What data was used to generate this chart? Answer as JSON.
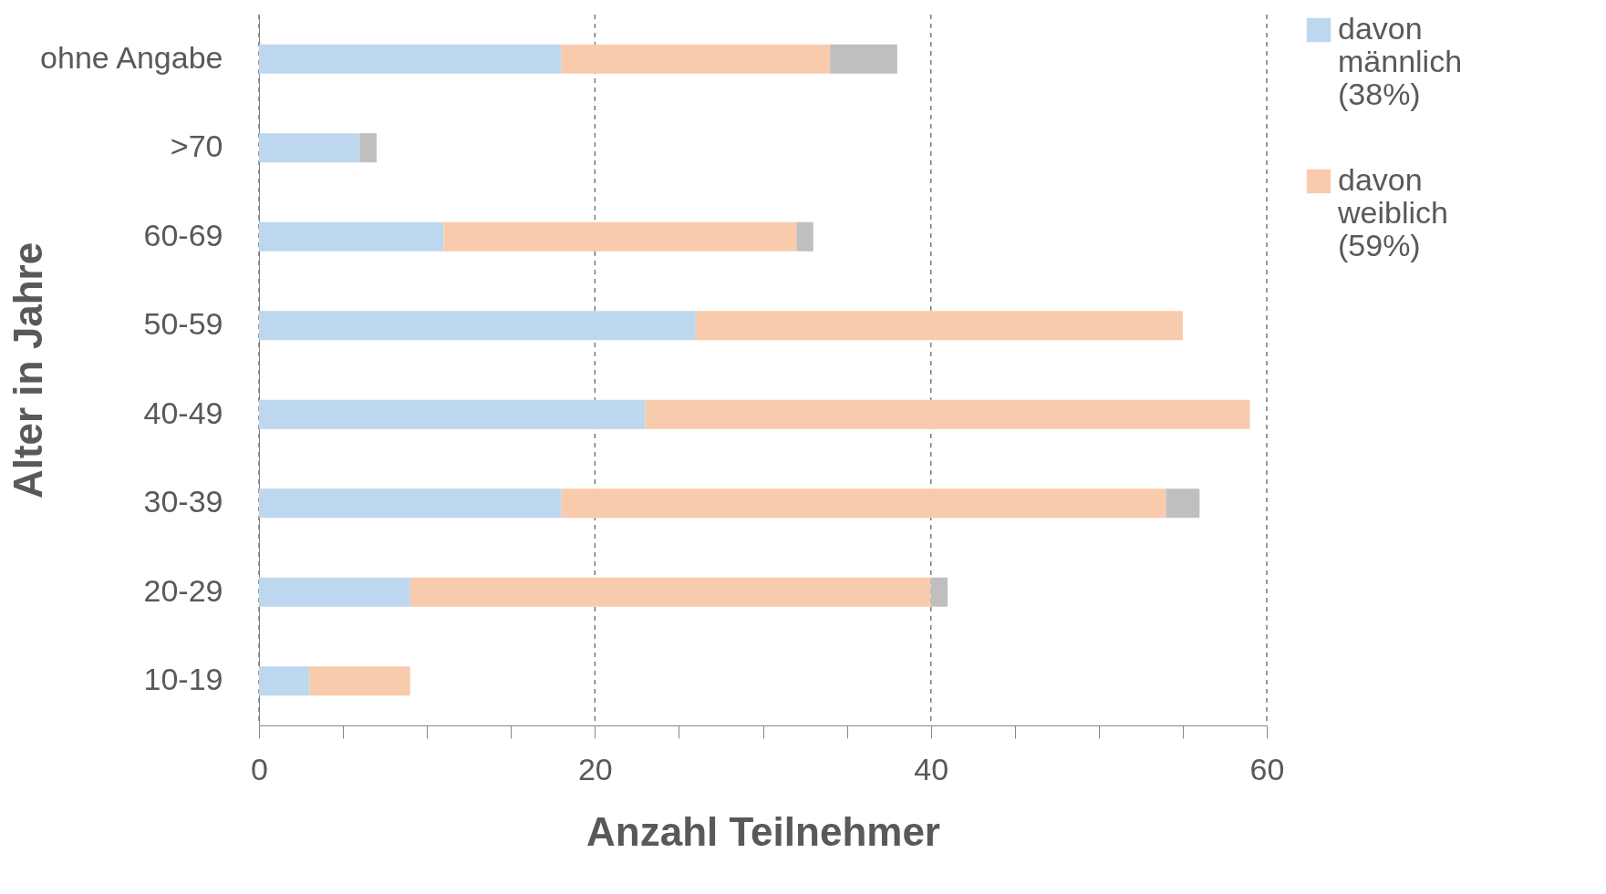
{
  "chart_data": {
    "type": "bar",
    "orientation": "horizontal",
    "stacked": true,
    "xlabel": "Anzahl Teilnehmer",
    "ylabel": "Alter in Jahre",
    "categories": [
      "ohne Angabe",
      ">70",
      "60-69",
      "50-59",
      "40-49",
      "30-39",
      "20-29",
      "10-19"
    ],
    "series": [
      {
        "name": "davon männlich (38%)",
        "color": "#bdd7ee",
        "values": [
          18,
          6,
          11,
          26,
          23,
          18,
          9,
          3
        ]
      },
      {
        "name": "davon weiblich (59%)",
        "color": "#f8cbad",
        "values": [
          16,
          0,
          21,
          29,
          36,
          36,
          31,
          6
        ]
      },
      {
        "color": "#bfbfbf",
        "values": [
          4,
          1,
          1,
          0,
          0,
          2,
          1,
          0
        ]
      }
    ],
    "xlim": [
      0,
      60
    ],
    "xticks": [
      0,
      {
        "value": 5,
        "label": null
      },
      {
        "value": 10,
        "label": null
      },
      {
        "value": 15,
        "label": null
      },
      20,
      {
        "value": 25,
        "label": null
      },
      {
        "value": 30,
        "label": null
      },
      {
        "value": 35,
        "label": null
      },
      40,
      {
        "value": 45,
        "label": null
      },
      {
        "value": 50,
        "label": null
      },
      {
        "value": 55,
        "label": null
      },
      60
    ],
    "grid": "x",
    "legend": "right"
  }
}
